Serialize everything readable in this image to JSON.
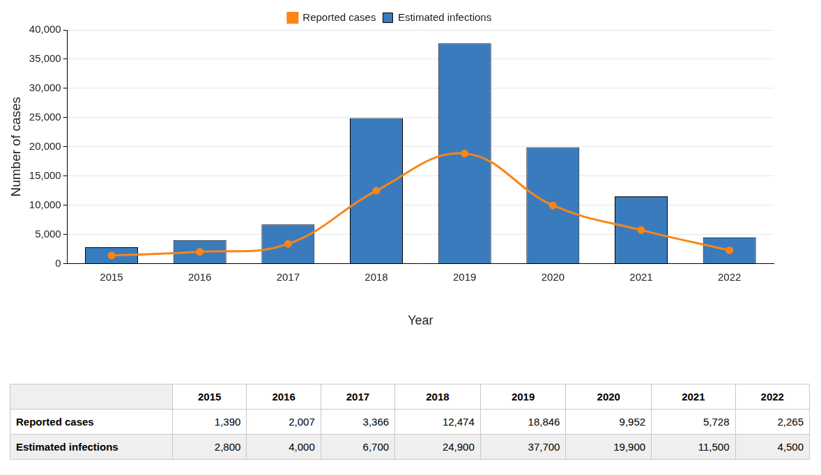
{
  "chart_data": {
    "type": "bar",
    "categories": [
      "2015",
      "2016",
      "2017",
      "2018",
      "2019",
      "2020",
      "2021",
      "2022"
    ],
    "x_label": "Year",
    "y_label": "Number of cases",
    "ylim": [
      0,
      40000
    ],
    "yticks": [
      0,
      {
        "value": 5000,
        "label": "5,000"
      },
      {
        "value": 10000,
        "label": "10,000"
      },
      {
        "value": 15000,
        "label": "15,000"
      },
      {
        "value": 20000,
        "label": "20,000"
      },
      {
        "value": 25000,
        "label": "25,000"
      },
      {
        "value": 30000,
        "label": "30,000"
      },
      {
        "value": 35000,
        "label": "35,000"
      },
      {
        "value": 40000,
        "label": "40,000"
      }
    ],
    "grid": true,
    "legend": "top",
    "series": [
      {
        "name": "Estimated infections",
        "type": "bar",
        "color": "#3a7bbd",
        "values": [
          2800,
          4000,
          6700,
          24900,
          37700,
          19900,
          11500,
          4500
        ]
      },
      {
        "name": "Reported cases",
        "type": "line",
        "color": "#fb8516",
        "marker": "circle",
        "line_style": "solid",
        "values": [
          1390,
          2007,
          3366,
          12474,
          18846,
          9952,
          5728,
          2265
        ]
      }
    ]
  },
  "table": {
    "columns": [
      "2015",
      "2016",
      "2017",
      "2018",
      "2019",
      "2020",
      "2021",
      "2022"
    ],
    "rows": [
      {
        "label": "Reported cases",
        "cells": [
          "1,390",
          "2,007",
          "3,366",
          "12,474",
          "18,846",
          "9,952",
          "5,728",
          "2,265"
        ]
      },
      {
        "label": "Estimated infections",
        "cells": [
          "2,800",
          "4,000",
          "6,700",
          "24,900",
          "37,700",
          "19,900",
          "11,500",
          "4,500"
        ]
      }
    ]
  }
}
